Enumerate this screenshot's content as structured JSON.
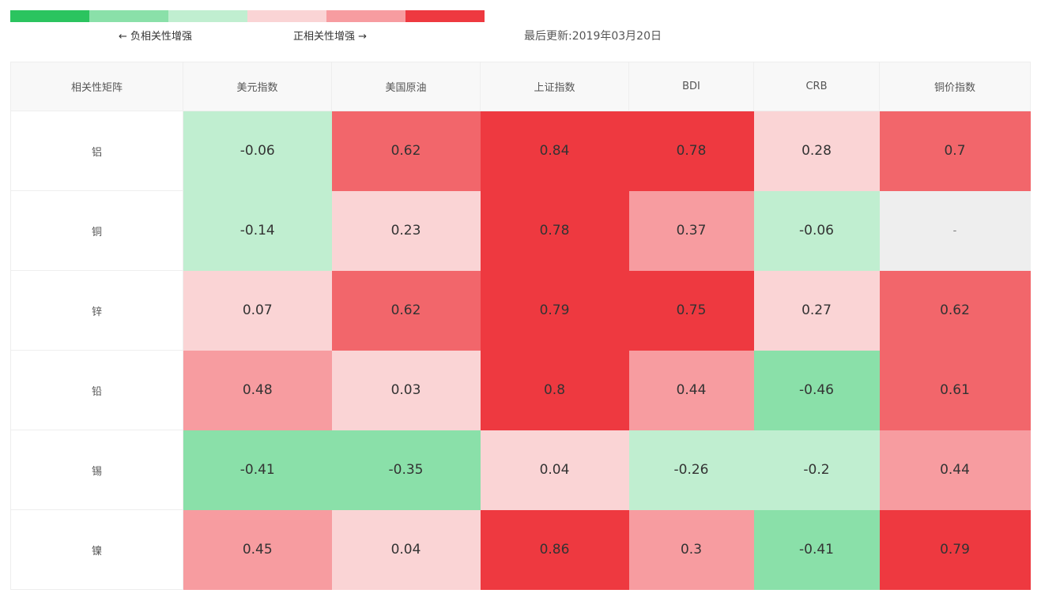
{
  "legend": {
    "colors": [
      "#2bc45f",
      "#8ae0a9",
      "#c0eed0",
      "#fad4d5",
      "#f79ca0",
      "#ee3940"
    ],
    "negative_label": "← 负相关性增强",
    "positive_label": "正相关性增强 →"
  },
  "last_updated": "最后更新:2019年03月20日",
  "matrix": {
    "corner_label": "相关性矩阵",
    "columns": [
      "美元指数",
      "美国原油",
      "上证指数",
      "BDI",
      "CRB",
      "铜价指数"
    ],
    "rows": [
      {
        "name": "铝",
        "values": [
          "-0.06",
          "0.62",
          "0.84",
          "0.78",
          "0.28",
          "0.7"
        ]
      },
      {
        "name": "铜",
        "values": [
          "-0.14",
          "0.23",
          "0.78",
          "0.37",
          "-0.06",
          "-"
        ]
      },
      {
        "name": "锌",
        "values": [
          "0.07",
          "0.62",
          "0.79",
          "0.75",
          "0.27",
          "0.62"
        ]
      },
      {
        "name": "铅",
        "values": [
          "0.48",
          "0.03",
          "0.8",
          "0.44",
          "-0.46",
          "0.61"
        ]
      },
      {
        "name": "锡",
        "values": [
          "-0.41",
          "-0.35",
          "0.04",
          "-0.26",
          "-0.2",
          "0.44"
        ]
      },
      {
        "name": "镍",
        "values": [
          "0.45",
          "0.04",
          "0.86",
          "0.3",
          "-0.41",
          "0.79"
        ]
      }
    ],
    "empty_cell_color": "#eeeeee"
  }
}
